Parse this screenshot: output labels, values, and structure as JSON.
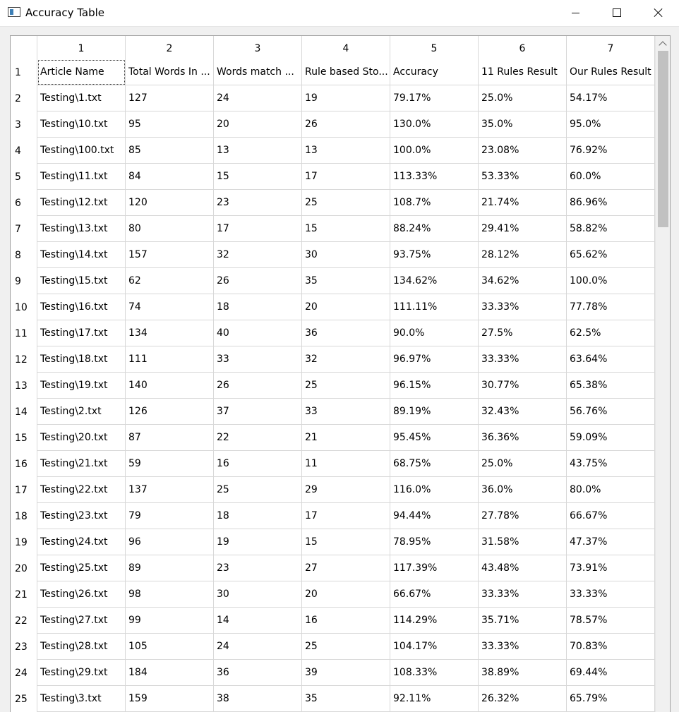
{
  "window": {
    "title": "Accuracy Table",
    "minimize_label": "Minimize",
    "maximize_label": "Maximize",
    "close_label": "Close"
  },
  "table": {
    "column_numbers": [
      "1",
      "2",
      "3",
      "4",
      "5",
      "6",
      "7"
    ],
    "rows": [
      {
        "num": "1",
        "cells": [
          "Article Name",
          "Total Words In ...",
          "Words match ...",
          "Rule based Sto...",
          "Accuracy",
          "11 Rules Result",
          "Our Rules Result"
        ]
      },
      {
        "num": "2",
        "cells": [
          "Testing\\1.txt",
          "127",
          "24",
          "19",
          "79.17%",
          "25.0%",
          "54.17%"
        ]
      },
      {
        "num": "3",
        "cells": [
          "Testing\\10.txt",
          "95",
          "20",
          "26",
          "130.0%",
          "35.0%",
          "95.0%"
        ]
      },
      {
        "num": "4",
        "cells": [
          "Testing\\100.txt",
          "85",
          "13",
          "13",
          "100.0%",
          "23.08%",
          "76.92%"
        ]
      },
      {
        "num": "5",
        "cells": [
          "Testing\\11.txt",
          "84",
          "15",
          "17",
          "113.33%",
          "53.33%",
          "60.0%"
        ]
      },
      {
        "num": "6",
        "cells": [
          "Testing\\12.txt",
          "120",
          "23",
          "25",
          "108.7%",
          "21.74%",
          "86.96%"
        ]
      },
      {
        "num": "7",
        "cells": [
          "Testing\\13.txt",
          "80",
          "17",
          "15",
          "88.24%",
          "29.41%",
          "58.82%"
        ]
      },
      {
        "num": "8",
        "cells": [
          "Testing\\14.txt",
          "157",
          "32",
          "30",
          "93.75%",
          "28.12%",
          "65.62%"
        ]
      },
      {
        "num": "9",
        "cells": [
          "Testing\\15.txt",
          "62",
          "26",
          "35",
          "134.62%",
          "34.62%",
          "100.0%"
        ]
      },
      {
        "num": "10",
        "cells": [
          "Testing\\16.txt",
          "74",
          "18",
          "20",
          "111.11%",
          "33.33%",
          "77.78%"
        ]
      },
      {
        "num": "11",
        "cells": [
          "Testing\\17.txt",
          "134",
          "40",
          "36",
          "90.0%",
          "27.5%",
          "62.5%"
        ]
      },
      {
        "num": "12",
        "cells": [
          "Testing\\18.txt",
          "111",
          "33",
          "32",
          "96.97%",
          "33.33%",
          "63.64%"
        ]
      },
      {
        "num": "13",
        "cells": [
          "Testing\\19.txt",
          "140",
          "26",
          "25",
          "96.15%",
          "30.77%",
          "65.38%"
        ]
      },
      {
        "num": "14",
        "cells": [
          "Testing\\2.txt",
          "126",
          "37",
          "33",
          "89.19%",
          "32.43%",
          "56.76%"
        ]
      },
      {
        "num": "15",
        "cells": [
          "Testing\\20.txt",
          "87",
          "22",
          "21",
          "95.45%",
          "36.36%",
          "59.09%"
        ]
      },
      {
        "num": "16",
        "cells": [
          "Testing\\21.txt",
          "59",
          "16",
          "11",
          "68.75%",
          "25.0%",
          "43.75%"
        ]
      },
      {
        "num": "17",
        "cells": [
          "Testing\\22.txt",
          "137",
          "25",
          "29",
          "116.0%",
          "36.0%",
          "80.0%"
        ]
      },
      {
        "num": "18",
        "cells": [
          "Testing\\23.txt",
          "79",
          "18",
          "17",
          "94.44%",
          "27.78%",
          "66.67%"
        ]
      },
      {
        "num": "19",
        "cells": [
          "Testing\\24.txt",
          "96",
          "19",
          "15",
          "78.95%",
          "31.58%",
          "47.37%"
        ]
      },
      {
        "num": "20",
        "cells": [
          "Testing\\25.txt",
          "89",
          "23",
          "27",
          "117.39%",
          "43.48%",
          "73.91%"
        ]
      },
      {
        "num": "21",
        "cells": [
          "Testing\\26.txt",
          "98",
          "30",
          "20",
          "66.67%",
          "33.33%",
          "33.33%"
        ]
      },
      {
        "num": "22",
        "cells": [
          "Testing\\27.txt",
          "99",
          "14",
          "16",
          "114.29%",
          "35.71%",
          "78.57%"
        ]
      },
      {
        "num": "23",
        "cells": [
          "Testing\\28.txt",
          "105",
          "24",
          "25",
          "104.17%",
          "33.33%",
          "70.83%"
        ]
      },
      {
        "num": "24",
        "cells": [
          "Testing\\29.txt",
          "184",
          "36",
          "39",
          "108.33%",
          "38.89%",
          "69.44%"
        ]
      },
      {
        "num": "25",
        "cells": [
          "Testing\\3.txt",
          "159",
          "38",
          "35",
          "92.11%",
          "26.32%",
          "65.79%"
        ]
      }
    ]
  }
}
